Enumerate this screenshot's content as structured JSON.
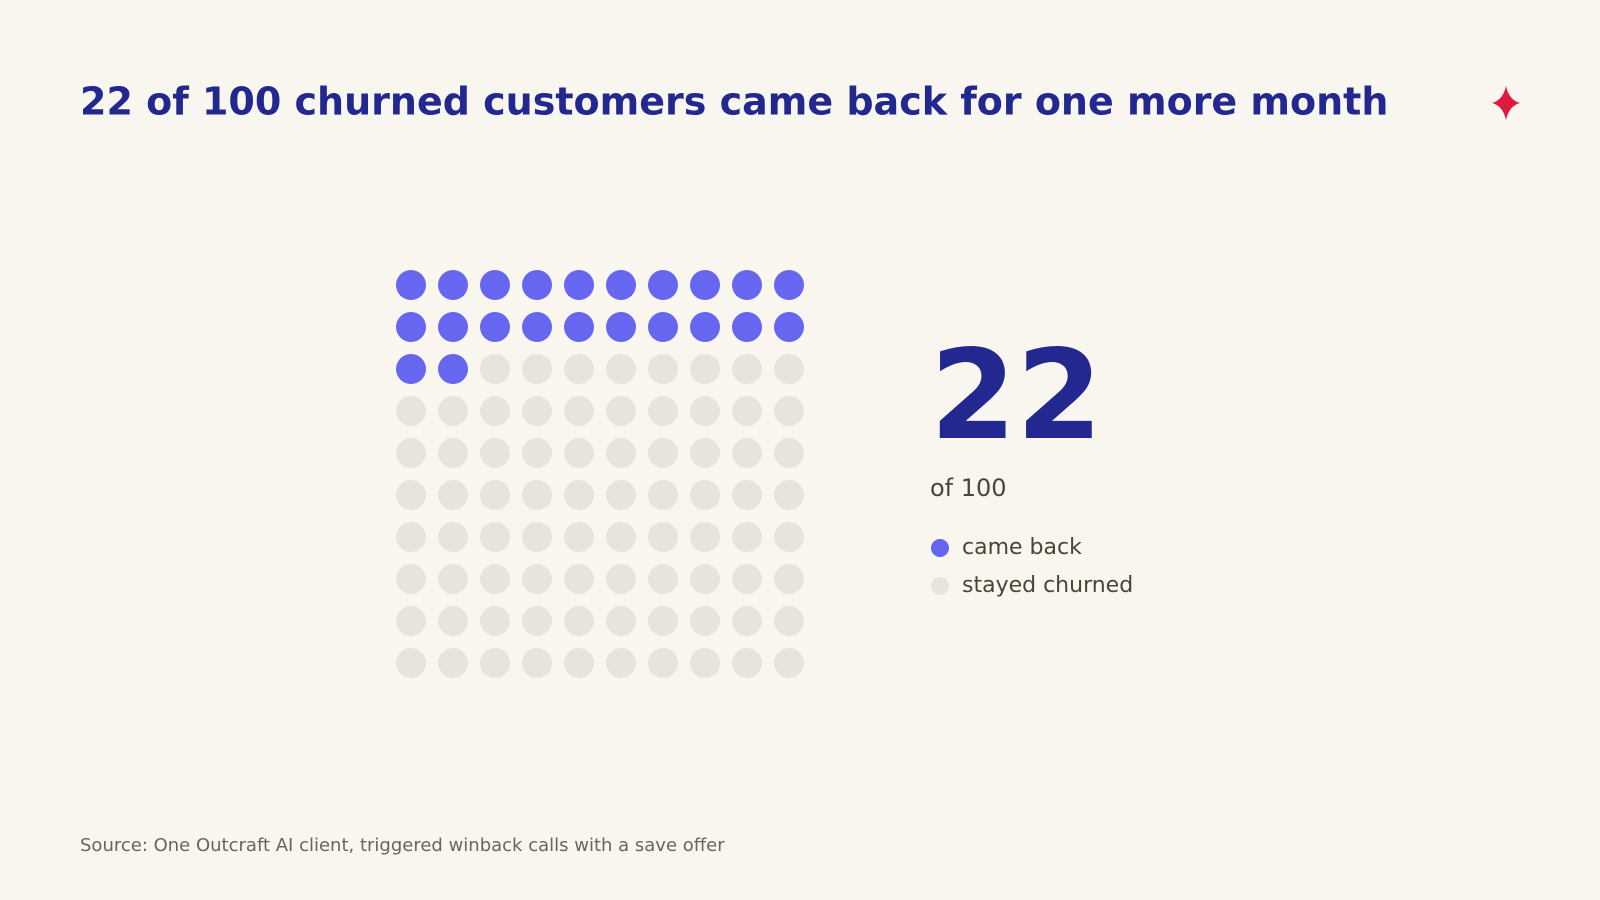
{
  "chart_data": {
    "type": "waffle",
    "title": "22 of 100 churned customers came back for one more month",
    "series": [
      {
        "name": "came back",
        "color": "#6766f0",
        "value": 22
      },
      {
        "name": "stayed churned",
        "color": "#e8e4dd",
        "value": 78
      }
    ],
    "total": 100,
    "total_label": "of 100",
    "source": "Source: One Outcraft AI client, triggered winback calls with a save offer"
  }
}
